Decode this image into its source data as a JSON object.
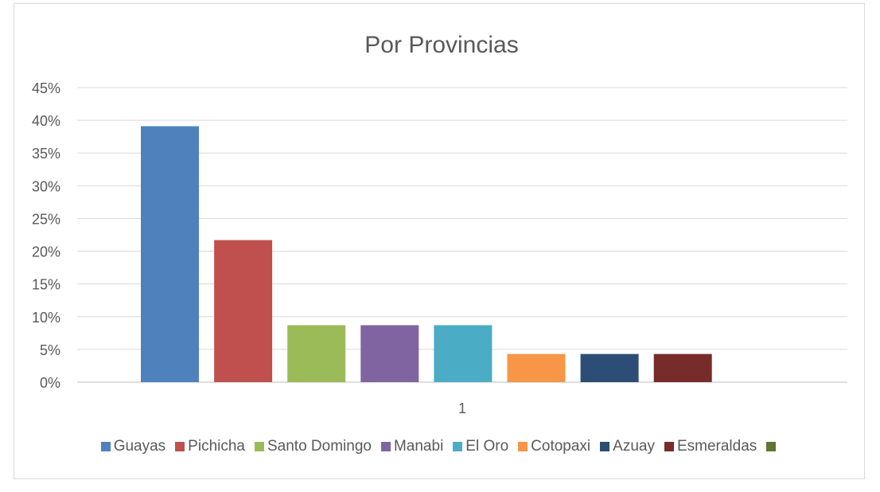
{
  "chart_data": {
    "type": "bar",
    "title": "Por Provincias",
    "categories": [
      "1"
    ],
    "xlabel": "",
    "ylabel": "",
    "ylim": [
      0,
      45
    ],
    "yticks": [
      "0%",
      "5%",
      "10%",
      "15%",
      "20%",
      "25%",
      "30%",
      "35%",
      "40%",
      "45%"
    ],
    "grid": true,
    "legend": "bottom",
    "series": [
      {
        "name": "Guayas",
        "values": [
          39.1
        ],
        "color": "#4f81bd"
      },
      {
        "name": "Pichicha",
        "values": [
          21.7
        ],
        "color": "#c0504d"
      },
      {
        "name": "Santo Domingo",
        "values": [
          8.7
        ],
        "color": "#9bbb59"
      },
      {
        "name": "Manabi",
        "values": [
          8.7
        ],
        "color": "#8064a2"
      },
      {
        "name": "El Oro",
        "values": [
          8.7
        ],
        "color": "#4bacc6"
      },
      {
        "name": "Cotopaxi",
        "values": [
          4.3
        ],
        "color": "#f79646"
      },
      {
        "name": "Azuay",
        "values": [
          4.3
        ],
        "color": "#2c4d75"
      },
      {
        "name": "Esmeraldas",
        "values": [
          4.3
        ],
        "color": "#772c2a"
      },
      {
        "name": "",
        "values": [
          0
        ],
        "color": "#5f7530"
      }
    ]
  }
}
